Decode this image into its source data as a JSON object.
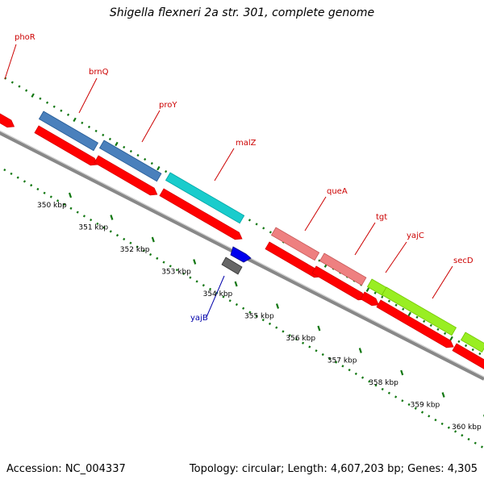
{
  "title": "Shigella flexneri 2a str. 301, complete genome",
  "footer": {
    "accession": "Accession: NC_004337",
    "summary": "Topology: circular; Length: 4,607,203 bp; Genes: 4,305"
  },
  "colors": {
    "cds": "#ff0000",
    "blue_gene": "#4a80bc",
    "cyan_gene": "#19cccc",
    "pink_gene": "#ee8080",
    "green_gene": "#99ee22",
    "yajB": "#0000ee",
    "grey_gene": "#666666",
    "backbone": "#888888",
    "tick": "#117711",
    "gene_label": "#cc0000",
    "minus_label": "#0000aa"
  },
  "scale": {
    "unit": "kbp",
    "start_kbp": 350,
    "end_kbp": 360
  },
  "ticks": [
    {
      "label": "350 kbp",
      "kbp": 350
    },
    {
      "label": "351 kbp",
      "kbp": 351
    },
    {
      "label": "352 kbp",
      "kbp": 352
    },
    {
      "label": "353 kbp",
      "kbp": 353
    },
    {
      "label": "354 kbp",
      "kbp": 354
    },
    {
      "label": "355 kbp",
      "kbp": 355
    },
    {
      "label": "356 kbp",
      "kbp": 356
    },
    {
      "label": "357 kbp",
      "kbp": 357
    },
    {
      "label": "358 kbp",
      "kbp": 358
    },
    {
      "label": "359 kbp",
      "kbp": 359
    },
    {
      "label": "360 kbp",
      "kbp": 360
    }
  ],
  "genes": [
    {
      "name": "phoR",
      "color": "cds"
    },
    {
      "name": "brnQ",
      "color": "blue_gene"
    },
    {
      "name": "proY",
      "color": "blue_gene"
    },
    {
      "name": "malZ",
      "color": "cyan_gene"
    },
    {
      "name": "queA",
      "color": "pink_gene"
    },
    {
      "name": "tgt",
      "color": "pink_gene"
    },
    {
      "name": "yajC",
      "color": "green_gene"
    },
    {
      "name": "secD",
      "color": "green_gene"
    },
    {
      "name": "yajB",
      "color": "yajB"
    }
  ]
}
